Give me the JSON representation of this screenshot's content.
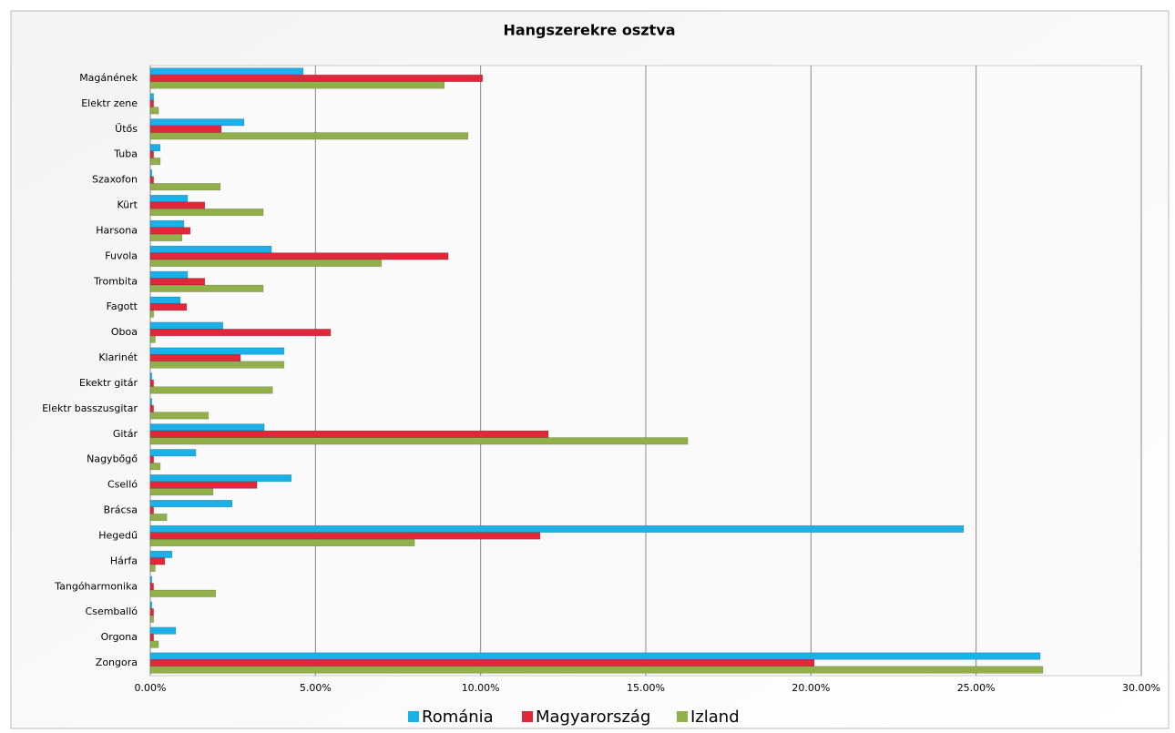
{
  "chart_data": {
    "type": "hbar",
    "title": "Hangszerekre osztva",
    "categories": [
      "Magánének",
      "Elektr zene",
      "Űtős",
      "Tuba",
      "Szaxofon",
      "Kürt",
      "Harsona",
      "Fuvola",
      "Trombita",
      "Fagott",
      "Oboa",
      "Klarinét",
      "Ekektr gitár",
      "Elektr basszusgitar",
      "Gitár",
      "Nagybőgő",
      "Cselló",
      "Brácsa",
      "Hegedű",
      "Hárfa",
      "Tangóharmonika",
      "Csemballó",
      "Orgona",
      "Zongora"
    ],
    "series": [
      {
        "name": "Románia",
        "color": "#1ab0ea",
        "values": [
          4.63,
          0.1,
          2.84,
          0.3,
          0.05,
          1.13,
          1.02,
          3.67,
          1.13,
          0.91,
          2.2,
          4.05,
          0.05,
          0.05,
          3.45,
          1.38,
          4.27,
          2.48,
          24.62,
          0.66,
          0.05,
          0.05,
          0.77,
          26.94
        ]
      },
      {
        "name": "Magyarország",
        "color": "#e0283a",
        "values": [
          10.06,
          0.1,
          2.15,
          0.1,
          0.1,
          1.65,
          1.21,
          9.02,
          1.65,
          1.1,
          5.46,
          2.73,
          0.1,
          0.1,
          12.05,
          0.1,
          3.23,
          0.1,
          11.8,
          0.44,
          0.1,
          0.1,
          0.1,
          20.1
        ]
      },
      {
        "name": "Izland",
        "color": "#92b04a",
        "values": [
          8.9,
          0.25,
          9.62,
          0.3,
          2.12,
          3.42,
          0.96,
          7.0,
          3.42,
          0.1,
          0.15,
          4.05,
          3.7,
          1.76,
          16.27,
          0.3,
          1.9,
          0.5,
          8.0,
          0.15,
          1.98,
          0.1,
          0.25,
          27.02
        ]
      }
    ],
    "xlim": [
      0,
      30
    ],
    "xticks": [
      {
        "value": 0,
        "label": "0.00%"
      },
      {
        "value": 5,
        "label": "5.00%"
      },
      {
        "value": 10,
        "label": "10.00%"
      },
      {
        "value": 15,
        "label": "15.00%"
      },
      {
        "value": 20,
        "label": "20.00%"
      },
      {
        "value": 25,
        "label": "25.00%"
      },
      {
        "value": 30,
        "label": "30.00%"
      }
    ],
    "grid": true,
    "legend": "bottom"
  }
}
